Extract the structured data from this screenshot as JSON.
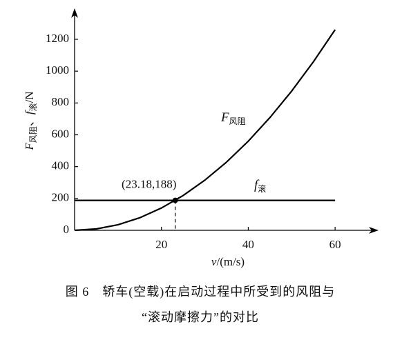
{
  "chart_data": {
    "type": "line",
    "xlabel_parts": [
      "v",
      "/(m/s)"
    ],
    "ylabel_parts": [
      "F",
      "风阻",
      "、",
      "f",
      "滚",
      "/N"
    ],
    "xlim": [
      0,
      70
    ],
    "ylim": [
      0,
      1395
    ],
    "xticks": [
      20,
      40,
      60
    ],
    "yticks": [
      0,
      200,
      400,
      600,
      800,
      1000,
      1200
    ],
    "series": [
      {
        "name": "F",
        "name_sub": "风阻",
        "color": "#000000",
        "x": [
          0,
          5,
          10,
          15,
          20,
          25,
          30,
          35,
          40,
          45,
          50,
          55,
          60
        ],
        "values": [
          0,
          8.7,
          35,
          78.7,
          140,
          218.7,
          315,
          428.7,
          560,
          708.7,
          875,
          1058.7,
          1260
        ]
      },
      {
        "name": "f",
        "name_sub": "滚",
        "color": "#000000",
        "x": [
          0,
          60
        ],
        "values": [
          188,
          188
        ]
      }
    ],
    "annotation": {
      "text": "(23.18,188)",
      "x": 23.18,
      "y": 188
    },
    "caption": [
      "图 6　轿车(空载)在启动过程中所受到的风阻与",
      "“滚动摩擦力”的对比"
    ]
  }
}
